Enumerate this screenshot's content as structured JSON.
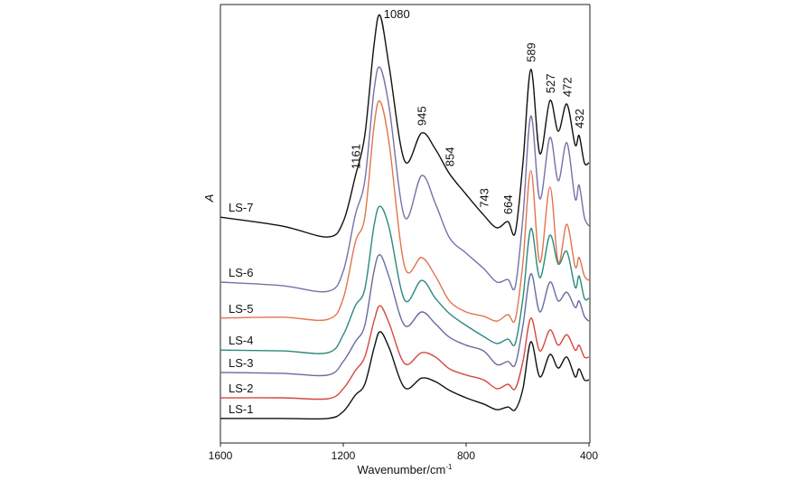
{
  "chart_data": {
    "type": "line",
    "xlabel": "Wavenumber/cm",
    "xlabel_sup": "-1",
    "ylabel": "A",
    "xlim": [
      1600,
      400
    ],
    "ylim": [
      0,
      100
    ],
    "x_reversed": true,
    "xticks": [
      1600,
      1200,
      800,
      400
    ],
    "grid": false,
    "legend": "inline labels at left",
    "x": [
      1600,
      1400,
      1250,
      1200,
      1161,
      1130,
      1100,
      1080,
      1050,
      1000,
      945,
      900,
      854,
      800,
      743,
      700,
      664,
      640,
      615,
      589,
      560,
      527,
      500,
      472,
      445,
      432,
      415,
      400
    ],
    "series": [
      {
        "name": "LS-7",
        "color": "#111111",
        "values": [
          51.5,
          49.5,
          47.0,
          50.5,
          60.8,
          70.1,
          90.7,
          97.5,
          85.6,
          64.3,
          70.7,
          67.0,
          61.4,
          56.7,
          52.0,
          49.1,
          50.5,
          48.0,
          63.9,
          85.2,
          66.0,
          78.1,
          71.1,
          77.3,
          68.0,
          70.1,
          63.9,
          63.9
        ]
      },
      {
        "name": "LS-6",
        "color": "#7771a8",
        "values": [
          36.7,
          35.9,
          34.6,
          39.2,
          52.0,
          59.8,
          80.4,
          85.6,
          76.3,
          51.5,
          61.0,
          54.6,
          46.8,
          43.3,
          39.8,
          36.7,
          37.3,
          35.7,
          51.5,
          74.6,
          55.7,
          69.7,
          59.8,
          68.5,
          55.7,
          58.8,
          51.5,
          49.5
        ]
      },
      {
        "name": "LS-5",
        "color": "#e2744c",
        "values": [
          28.5,
          28.7,
          28.2,
          33.0,
          45.8,
          51.5,
          72.2,
          77.9,
          68.0,
          40.2,
          42.3,
          38.1,
          32.4,
          29.9,
          28.9,
          27.8,
          29.3,
          28.2,
          41.2,
          62.1,
          41.2,
          58.4,
          41.2,
          49.9,
          40.2,
          42.3,
          38.1,
          37.1
        ]
      },
      {
        "name": "LS-4",
        "color": "#2a8a7c",
        "values": [
          21.2,
          21.0,
          20.6,
          24.7,
          31.3,
          35.1,
          49.5,
          54.0,
          48.9,
          32.6,
          37.1,
          33.0,
          29.5,
          26.8,
          24.3,
          22.7,
          23.7,
          22.7,
          33.0,
          48.9,
          37.7,
          47.4,
          40.8,
          43.7,
          35.5,
          38.1,
          33.0,
          33.0
        ]
      },
      {
        "name": "LS-3",
        "color": "#676c9e",
        "values": [
          16.1,
          15.9,
          15.5,
          18.6,
          23.1,
          26.8,
          39.2,
          42.9,
          37.7,
          26.8,
          29.9,
          27.2,
          24.1,
          22.3,
          21.0,
          17.9,
          18.6,
          17.9,
          26.8,
          38.6,
          29.9,
          36.7,
          32.4,
          34.4,
          30.9,
          32.4,
          28.9,
          27.8
        ]
      },
      {
        "name": "LS-2",
        "color": "#d6483e",
        "values": [
          10.3,
          10.3,
          10.1,
          12.4,
          16.5,
          19.6,
          27.8,
          31.3,
          27.2,
          18.1,
          20.6,
          19.6,
          16.9,
          15.5,
          14.4,
          12.4,
          13.4,
          12.4,
          18.6,
          28.5,
          21.0,
          25.8,
          22.3,
          24.7,
          21.2,
          22.3,
          19.6,
          19.6
        ]
      },
      {
        "name": "LS-1",
        "color": "#111111",
        "values": [
          5.6,
          5.6,
          5.6,
          7.2,
          10.9,
          13.4,
          21.6,
          25.4,
          21.6,
          12.6,
          14.8,
          14.0,
          12.0,
          10.3,
          8.9,
          7.6,
          8.2,
          7.6,
          12.4,
          23.1,
          15.1,
          20.2,
          17.1,
          19.6,
          15.1,
          16.9,
          14.4,
          14.4
        ]
      }
    ],
    "annotations": [
      {
        "text": "1080",
        "x": 1080,
        "orientation": "horizontal"
      },
      {
        "text": "1161",
        "x": 1161,
        "orientation": "vertical"
      },
      {
        "text": "945",
        "x": 945,
        "orientation": "vertical"
      },
      {
        "text": "854",
        "x": 854,
        "orientation": "vertical"
      },
      {
        "text": "743",
        "x": 743,
        "orientation": "vertical"
      },
      {
        "text": "664",
        "x": 664,
        "orientation": "vertical"
      },
      {
        "text": "589",
        "x": 589,
        "orientation": "vertical"
      },
      {
        "text": "527",
        "x": 527,
        "orientation": "vertical"
      },
      {
        "text": "472",
        "x": 472,
        "orientation": "vertical"
      },
      {
        "text": "432",
        "x": 432,
        "orientation": "vertical"
      }
    ]
  }
}
